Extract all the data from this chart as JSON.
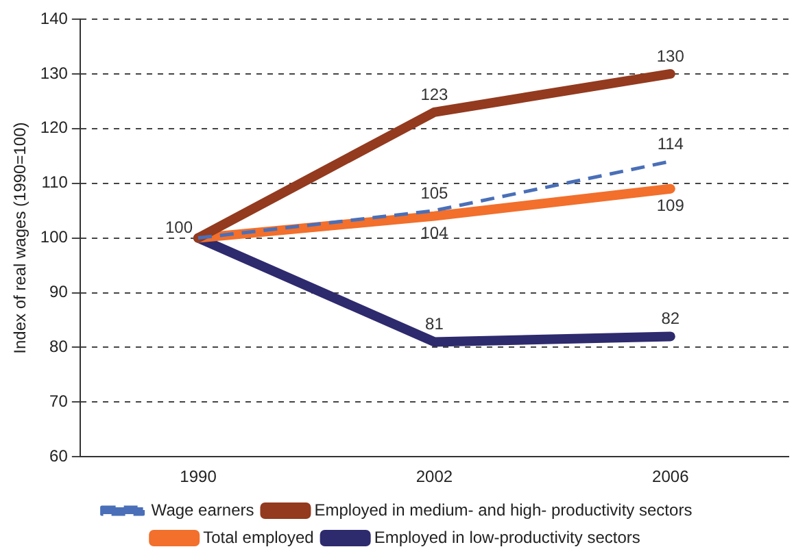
{
  "chart_data": {
    "type": "line",
    "ylabel": "Index of real wages (1990=100)",
    "categories": [
      "1990",
      "2002",
      "2006"
    ],
    "ylim": [
      60,
      140
    ],
    "yticks": [
      60,
      70,
      80,
      90,
      100,
      110,
      120,
      130,
      140
    ],
    "grid": "y",
    "legend": "bottom",
    "marker": "none",
    "line_style": "solid",
    "series": [
      {
        "name": "Wage earners",
        "color": "#4a6fb8",
        "values": [
          100,
          105,
          114
        ],
        "value_labels": [
          null,
          "105",
          "114"
        ],
        "line_style": "dashed"
      },
      {
        "name": "Employed in medium- and high- productivity sectors",
        "color": "#933a1f",
        "values": [
          100,
          123,
          130
        ],
        "value_labels": [
          "100",
          "123",
          "130"
        ]
      },
      {
        "name": "Total employed",
        "color": "#f26f2c",
        "values": [
          100,
          104,
          109
        ],
        "value_labels": [
          null,
          "104",
          "109"
        ]
      },
      {
        "name": "Employed in low-productivity sectors",
        "color": "#2e2a6e",
        "values": [
          100,
          81,
          82
        ],
        "value_labels": [
          null,
          "81",
          "82"
        ]
      }
    ]
  }
}
